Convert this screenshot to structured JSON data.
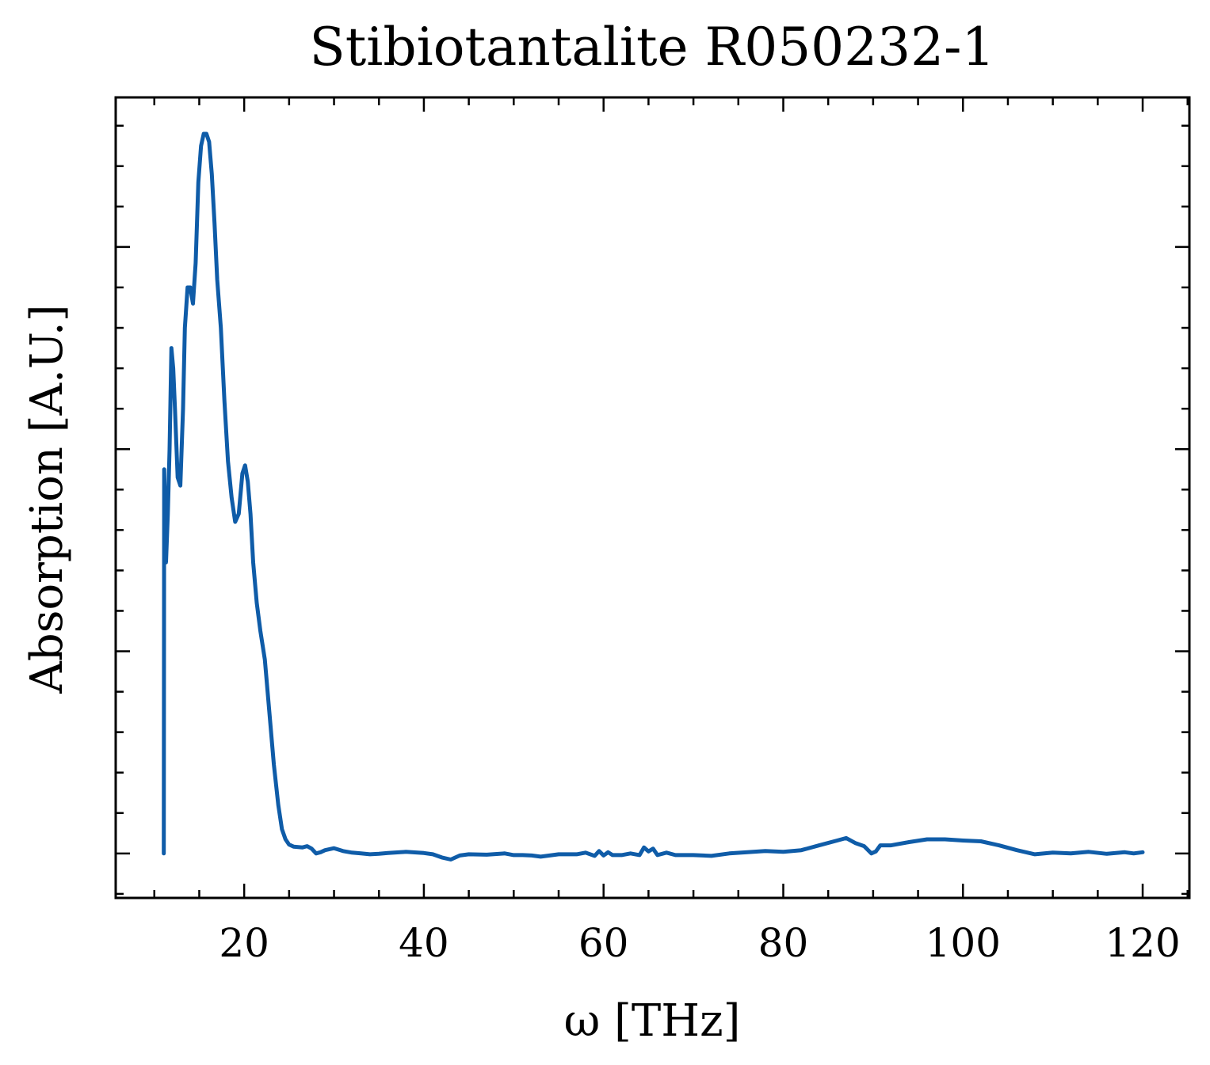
{
  "chart_data": {
    "type": "line",
    "title": "Stibiotantalite R050232-1",
    "xlabel": "ω [THz]",
    "ylabel": "Absorption [A.U.]",
    "xlim": [
      5.7,
      125.2
    ],
    "ylim": [
      -0.11,
      1.87
    ],
    "x_ticks": [
      20,
      40,
      60,
      80,
      100,
      120
    ],
    "x_tick_labels": [
      "20",
      "40",
      "60",
      "80",
      "100",
      "120"
    ],
    "x_minor_step": 5,
    "y_ticks": [
      0.0,
      0.5,
      1.0,
      1.5
    ],
    "y_minor_step": 0.1,
    "y_tick_labels_shown": false,
    "grid": false,
    "tick_direction": "in",
    "series": [
      {
        "color": "#0f5ca8",
        "x": [
          11.05,
          11.1,
          11.2,
          11.3,
          11.5,
          11.7,
          11.9,
          12.1,
          12.3,
          12.6,
          12.9,
          13.2,
          13.4,
          13.7,
          14.0,
          14.3,
          14.6,
          14.9,
          15.2,
          15.5,
          15.8,
          16.1,
          16.4,
          16.7,
          17.0,
          17.4,
          17.8,
          18.2,
          18.6,
          19.0,
          19.4,
          19.8,
          20.1,
          20.4,
          20.7,
          21.0,
          21.4,
          21.8,
          22.3,
          22.8,
          23.3,
          23.8,
          24.2,
          24.6,
          25.0,
          25.5,
          26.0,
          26.5,
          27.0,
          27.5,
          28.0,
          28.5,
          29.0,
          30.0,
          31.0,
          32.0,
          33.0,
          34.0,
          35.0,
          36.0,
          38.0,
          40.0,
          41.0,
          42.0,
          43.0,
          44.0,
          45.0,
          47.0,
          49.0,
          50.0,
          51.0,
          52.0,
          53.0,
          55.0,
          57.0,
          58.0,
          59.0,
          59.5,
          60.0,
          60.5,
          61.0,
          62.0,
          63.0,
          64.0,
          64.5,
          65.0,
          65.5,
          66.0,
          67.0,
          68.0,
          70.0,
          72.0,
          74.0,
          76.0,
          78.0,
          80.0,
          82.0,
          84.0,
          86.0,
          87.0,
          88.0,
          89.0,
          89.8,
          90.3,
          90.8,
          92.0,
          94.0,
          96.0,
          98.0,
          100.0,
          102.0,
          104.0,
          106.0,
          108.0,
          110.0,
          112.0,
          114.0,
          116.0,
          118.0,
          119.0,
          120.0
        ],
        "y": [
          0.0,
          0.95,
          0.85,
          0.72,
          0.84,
          1.0,
          1.25,
          1.2,
          1.1,
          0.93,
          0.91,
          1.1,
          1.3,
          1.4,
          1.4,
          1.36,
          1.46,
          1.66,
          1.75,
          1.78,
          1.78,
          1.76,
          1.68,
          1.56,
          1.42,
          1.3,
          1.12,
          0.97,
          0.88,
          0.82,
          0.84,
          0.94,
          0.96,
          0.92,
          0.84,
          0.72,
          0.62,
          0.55,
          0.48,
          0.35,
          0.22,
          0.12,
          0.06,
          0.035,
          0.022,
          0.017,
          0.016,
          0.015,
          0.018,
          0.012,
          0.0,
          0.003,
          0.008,
          0.013,
          0.006,
          0.002,
          0.0,
          -0.002,
          -0.001,
          0.001,
          0.004,
          0.001,
          -0.002,
          -0.01,
          -0.015,
          -0.005,
          -0.002,
          -0.003,
          0.0,
          -0.004,
          -0.004,
          -0.005,
          -0.008,
          -0.002,
          -0.002,
          0.002,
          -0.006,
          0.006,
          -0.005,
          0.003,
          -0.004,
          -0.004,
          0.0,
          -0.004,
          0.015,
          0.005,
          0.012,
          -0.004,
          0.002,
          -0.004,
          -0.004,
          -0.006,
          0.0,
          0.003,
          0.006,
          0.004,
          0.008,
          0.02,
          0.032,
          0.038,
          0.026,
          0.018,
          0.0,
          0.005,
          0.02,
          0.02,
          0.028,
          0.035,
          0.035,
          0.032,
          0.03,
          0.02,
          0.008,
          -0.002,
          0.002,
          0.0,
          0.004,
          -0.001,
          0.003,
          0.0,
          0.003
        ]
      }
    ]
  }
}
